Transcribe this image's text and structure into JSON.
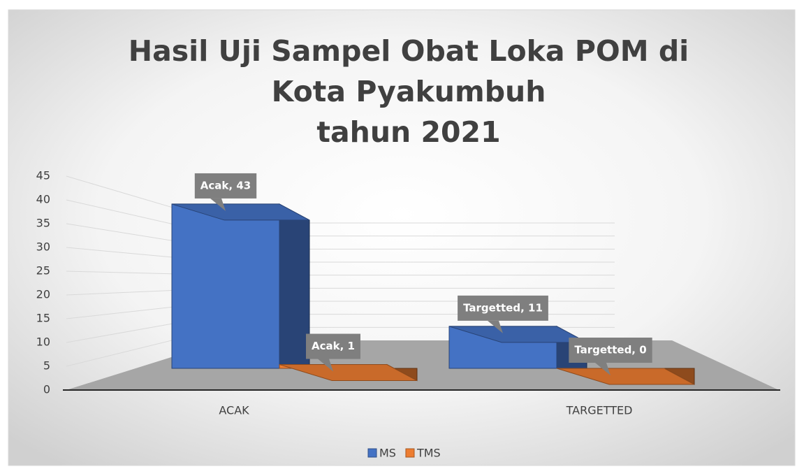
{
  "chart_data": {
    "type": "bar3d",
    "title": "Hasil Uji Sampel Obat Loka POM di Kota Pyakumbuh\ntahun 2021",
    "categories": [
      "ACAK",
      "TARGETTED"
    ],
    "series": [
      {
        "name": "MS",
        "color": "#4472c4",
        "values": [
          43,
          11
        ],
        "value_labels": [
          "Acak, 43",
          "Targetted, 11"
        ]
      },
      {
        "name": "TMS",
        "color": "#ed7d31",
        "values": [
          1,
          0
        ],
        "value_labels": [
          "Acak, 1",
          "Targetted, 0"
        ]
      }
    ],
    "ylim": [
      0,
      45
    ],
    "yticks": [
      0,
      5,
      10,
      15,
      20,
      25,
      30,
      35,
      40,
      45
    ],
    "grid": true,
    "legend": "bottom"
  }
}
